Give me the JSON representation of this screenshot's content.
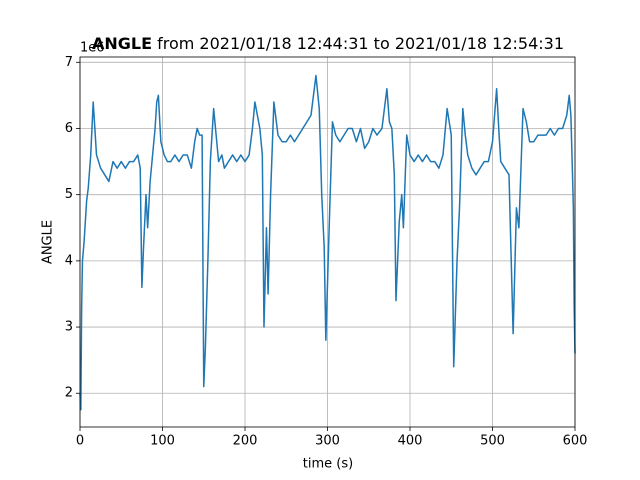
{
  "chart_data": {
    "type": "line",
    "title": {
      "bold": "ANGLE",
      "rest": "from 2021/01/18 12:44:31 to 2021/01/18 12:54:31"
    },
    "offset_text": "1e6",
    "xlabel": "time (s)",
    "ylabel": "ANGLE",
    "xlim": [
      0,
      600
    ],
    "ylim": [
      1.49,
      7.08
    ],
    "xticks": [
      0,
      100,
      200,
      300,
      400,
      500,
      600
    ],
    "yticks": [
      2,
      3,
      4,
      5,
      6,
      7
    ],
    "grid": true,
    "color": "#1f77b4",
    "x": [
      0,
      1,
      2,
      3,
      5,
      8,
      10,
      13,
      16,
      18,
      20,
      25,
      30,
      35,
      40,
      45,
      50,
      55,
      60,
      65,
      70,
      73,
      75,
      77,
      80,
      82,
      85,
      88,
      91,
      93,
      95,
      98,
      102,
      106,
      110,
      115,
      120,
      125,
      130,
      135,
      139,
      142,
      145,
      148,
      150,
      152,
      155,
      158,
      162,
      165,
      168,
      172,
      175,
      180,
      185,
      190,
      195,
      200,
      205,
      209,
      212,
      215,
      218,
      221,
      223,
      226,
      228,
      231,
      235,
      240,
      245,
      250,
      255,
      260,
      265,
      270,
      275,
      280,
      286,
      290,
      293,
      296,
      298,
      302,
      306,
      310,
      315,
      320,
      325,
      330,
      335,
      340,
      345,
      350,
      355,
      360,
      366,
      372,
      375,
      378,
      381,
      383,
      387,
      390,
      392,
      396,
      400,
      405,
      410,
      415,
      420,
      425,
      430,
      435,
      440,
      445,
      450,
      453,
      457,
      460,
      464,
      467,
      470,
      475,
      480,
      485,
      490,
      495,
      500,
      505,
      508,
      510,
      515,
      520,
      525,
      529,
      532,
      537,
      541,
      545,
      550,
      555,
      560,
      565,
      570,
      575,
      580,
      585,
      590,
      593,
      595,
      597,
      598,
      599,
      600
    ],
    "values": [
      2.0,
      1.75,
      3.3,
      4.0,
      4.3,
      4.9,
      5.1,
      5.6,
      6.4,
      6.0,
      5.6,
      5.4,
      5.3,
      5.2,
      5.5,
      5.4,
      5.5,
      5.4,
      5.5,
      5.5,
      5.6,
      5.4,
      3.6,
      4.2,
      5.0,
      4.5,
      5.2,
      5.6,
      6.0,
      6.4,
      6.5,
      5.8,
      5.6,
      5.5,
      5.5,
      5.6,
      5.5,
      5.6,
      5.6,
      5.4,
      5.8,
      6.0,
      5.9,
      5.9,
      2.1,
      2.7,
      4.0,
      5.5,
      6.3,
      5.9,
      5.5,
      5.6,
      5.4,
      5.5,
      5.6,
      5.5,
      5.6,
      5.5,
      5.6,
      6.0,
      6.4,
      6.2,
      6.0,
      5.6,
      3.0,
      4.5,
      3.5,
      5.0,
      6.4,
      5.9,
      5.8,
      5.8,
      5.9,
      5.8,
      5.9,
      6.0,
      6.1,
      6.2,
      6.8,
      6.3,
      5.0,
      4.2,
      2.8,
      4.5,
      6.1,
      5.9,
      5.8,
      5.9,
      6.0,
      6.0,
      5.8,
      6.0,
      5.7,
      5.8,
      6.0,
      5.9,
      6.0,
      6.6,
      6.1,
      6.0,
      5.3,
      3.4,
      4.6,
      5.0,
      4.5,
      5.9,
      5.6,
      5.5,
      5.6,
      5.5,
      5.6,
      5.5,
      5.5,
      5.4,
      5.6,
      6.3,
      5.9,
      2.4,
      4.0,
      4.8,
      6.3,
      5.9,
      5.6,
      5.4,
      5.3,
      5.4,
      5.5,
      5.5,
      5.8,
      6.6,
      5.9,
      5.5,
      5.4,
      5.3,
      2.9,
      4.8,
      4.5,
      6.3,
      6.1,
      5.8,
      5.8,
      5.9,
      5.9,
      5.9,
      6.0,
      5.9,
      6.0,
      6.0,
      6.2,
      6.5,
      6.2,
      5.3,
      4.8,
      3.3,
      2.6
    ]
  }
}
